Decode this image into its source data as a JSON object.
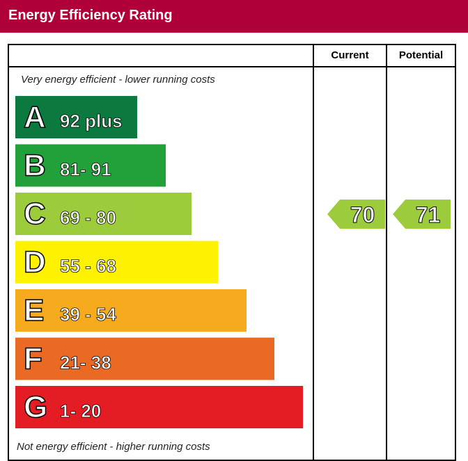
{
  "header": {
    "title": "Energy Efficiency Rating"
  },
  "table": {
    "current_label": "Current",
    "potential_label": "Potential"
  },
  "notes": {
    "top": "Very energy efficient - lower running costs",
    "bottom": "Not energy efficient - higher running costs"
  },
  "chart_data": {
    "type": "bar",
    "title": "Energy Efficiency Rating",
    "categories": [
      "A",
      "B",
      "C",
      "D",
      "E",
      "F",
      "G"
    ],
    "ranges": [
      "92 plus",
      "81- 91",
      "69 - 80",
      "55 - 68",
      "39 - 54",
      "21- 38",
      "1- 20"
    ],
    "colors": [
      "#0c7a3f",
      "#22a13a",
      "#9ccb3b",
      "#fff200",
      "#f5ab1d",
      "#ea6a24",
      "#e31d23"
    ],
    "current": {
      "value": 70,
      "band": "C",
      "color": "#9ccb3b"
    },
    "potential": {
      "value": 71,
      "band": "C",
      "color": "#9ccb3b"
    }
  }
}
